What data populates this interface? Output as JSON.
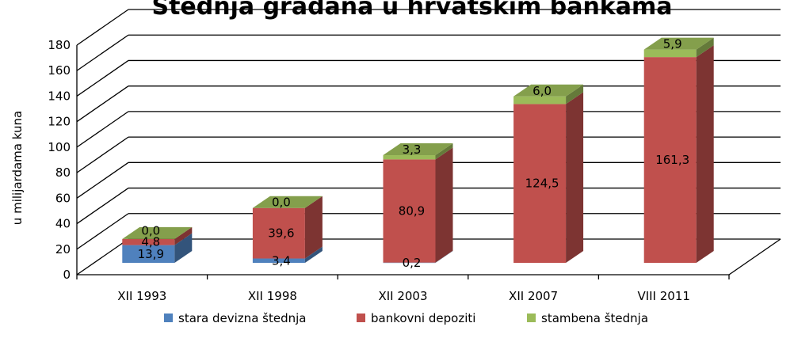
{
  "chart_data": {
    "type": "bar",
    "stacked": true,
    "three_d": true,
    "title": "Štednja građana u hrvatskim bankama",
    "ylabel": "u milijardama kuna",
    "xlabel": "",
    "ylim": [
      0,
      180
    ],
    "yticks": [
      0,
      20,
      40,
      60,
      80,
      100,
      120,
      140,
      160,
      180
    ],
    "categories": [
      "XII 1993",
      "XII 1998",
      "XII 2003",
      "XII 2007",
      "VIII 2011"
    ],
    "series": [
      {
        "name": "stara devizna štednja",
        "color": "#4f81bd",
        "values": [
          13.9,
          3.4,
          0.2,
          0,
          0
        ],
        "labels": [
          "13,9",
          "3,4",
          "0,2",
          "",
          ""
        ]
      },
      {
        "name": "bankovni depoziti",
        "color": "#c0504d",
        "values": [
          4.8,
          39.6,
          80.9,
          124.5,
          161.3
        ],
        "labels": [
          "4,8",
          "39,6",
          "80,9",
          "124,5",
          "161,3"
        ]
      },
      {
        "name": "stambena štednja",
        "color": "#9bbb59",
        "values": [
          0.0,
          0.0,
          3.3,
          6.0,
          5.9
        ],
        "labels": [
          "0,0",
          "0,0",
          "3,3",
          "6,0",
          "5,9"
        ]
      }
    ],
    "grid": true,
    "legend": "bottom"
  }
}
